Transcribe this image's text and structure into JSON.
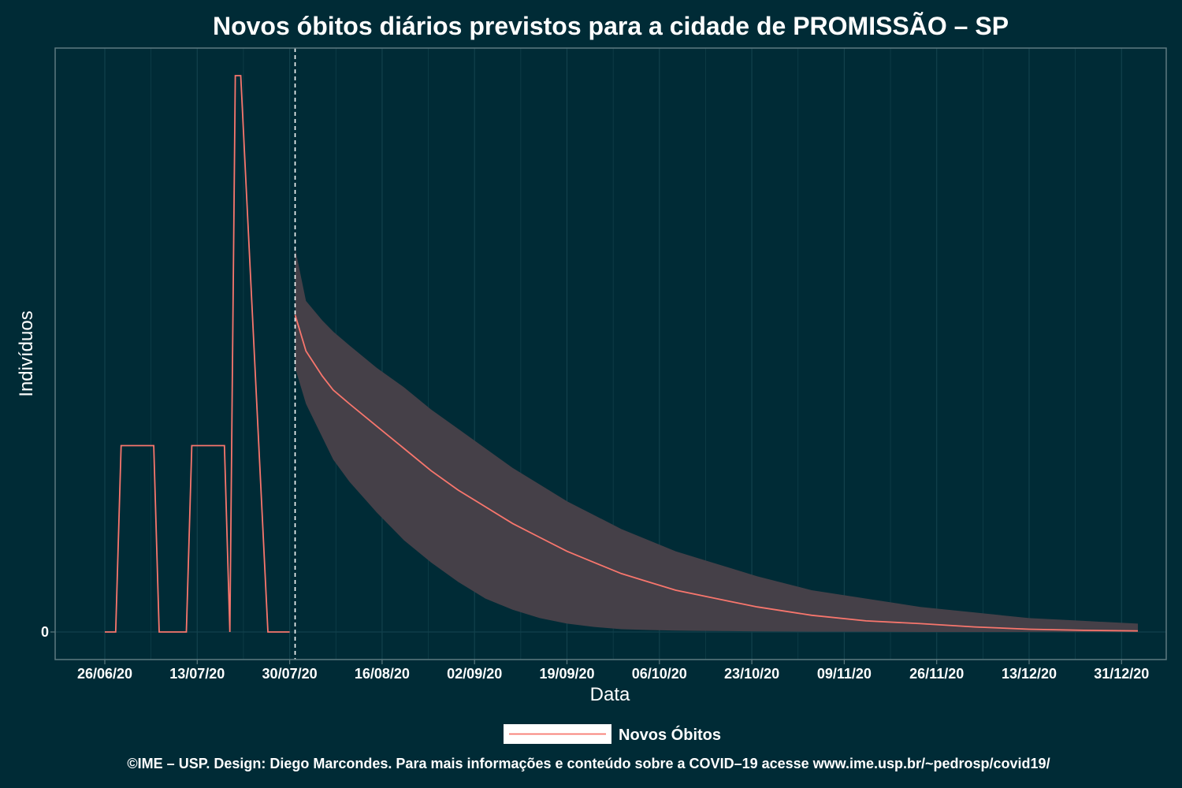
{
  "chart_data": {
    "type": "line",
    "title": "Novos óbitos diários previstos para a cidade de PROMISSÃO – SP",
    "xlabel": "Data",
    "ylabel": "Indivíduos",
    "x_tick_labels": [
      "26/06/20",
      "13/07/20",
      "30/07/20",
      "16/08/20",
      "02/09/20",
      "19/09/20",
      "06/10/20",
      "23/10/20",
      "09/11/20",
      "26/11/20",
      "13/12/20",
      "31/12/20"
    ],
    "y_tick_labels": [
      "0"
    ],
    "ylim": [
      -0.05,
      2.05
    ],
    "grid": true,
    "legend_position": "bottom",
    "forecast_start_day": 35,
    "series": [
      {
        "name": "Novos Óbitos",
        "color": "#f8766d",
        "observed": {
          "x": [
            0,
            2,
            3,
            9,
            10,
            15,
            16,
            22,
            23,
            24,
            25,
            30,
            31,
            34
          ],
          "y": [
            0,
            0,
            0.67,
            0.67,
            0,
            0,
            0.67,
            0.67,
            0,
            2,
            2,
            0,
            0,
            0
          ]
        },
        "forecast": {
          "x": [
            35,
            37,
            40,
            42,
            45,
            50,
            55,
            60,
            65,
            70,
            75,
            80,
            85,
            90,
            95,
            100,
            105,
            110,
            115,
            120,
            130,
            140,
            150,
            160,
            170,
            180,
            190
          ],
          "y": [
            1.14,
            1.01,
            0.92,
            0.87,
            0.82,
            0.74,
            0.66,
            0.58,
            0.51,
            0.45,
            0.39,
            0.34,
            0.29,
            0.25,
            0.21,
            0.18,
            0.15,
            0.13,
            0.11,
            0.09,
            0.06,
            0.04,
            0.03,
            0.018,
            0.01,
            0.006,
            0.004
          ],
          "lower": [
            0.95,
            0.82,
            0.7,
            0.62,
            0.54,
            0.43,
            0.33,
            0.25,
            0.18,
            0.12,
            0.08,
            0.05,
            0.03,
            0.018,
            0.01,
            0.007,
            0.005,
            0.004,
            0.003,
            0.002,
            0.001,
            0.001,
            0,
            0,
            0,
            0,
            0
          ],
          "upper": [
            1.38,
            1.19,
            1.12,
            1.08,
            1.03,
            0.95,
            0.88,
            0.8,
            0.73,
            0.66,
            0.59,
            0.53,
            0.47,
            0.42,
            0.37,
            0.33,
            0.29,
            0.26,
            0.23,
            0.2,
            0.15,
            0.12,
            0.09,
            0.07,
            0.05,
            0.04,
            0.03
          ]
        }
      }
    ],
    "ribbon_color": "#454048"
  },
  "caption": "©IME – USP. Design: Diego Marcondes. Para mais informações e conteúdo sobre a COVID–19 acesse www.ime.usp.br/~pedrosp/covid19/",
  "colors": {
    "background": "#002b36",
    "text": "#ffffff",
    "grid": "#12414c"
  }
}
